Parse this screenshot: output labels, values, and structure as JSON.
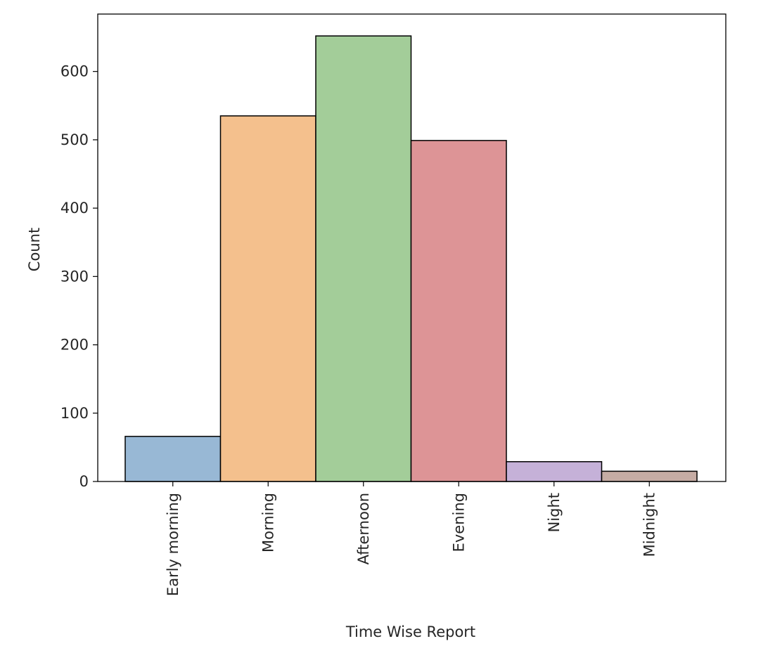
{
  "chart_data": {
    "type": "bar",
    "title": "",
    "xlabel": "Time Wise Report",
    "ylabel": "Count",
    "categories": [
      "Early morning",
      "Morning",
      "Afternoon",
      "Evening",
      "Night",
      "Midnight"
    ],
    "values": [
      66,
      535,
      652,
      499,
      29,
      15
    ],
    "ylim": [
      0,
      684
    ],
    "yticks": [
      0,
      100,
      200,
      300,
      400,
      500,
      600
    ],
    "ytick_labels": [
      "0",
      "100",
      "200",
      "300",
      "400",
      "500",
      "600"
    ],
    "colors": [
      "#98b8d5",
      "#f4c08d",
      "#a3cd99",
      "#dd9496",
      "#c5b1d8",
      "#c6aca4"
    ],
    "bar_edge_color": "#000000",
    "grid": false,
    "legend": "none"
  }
}
